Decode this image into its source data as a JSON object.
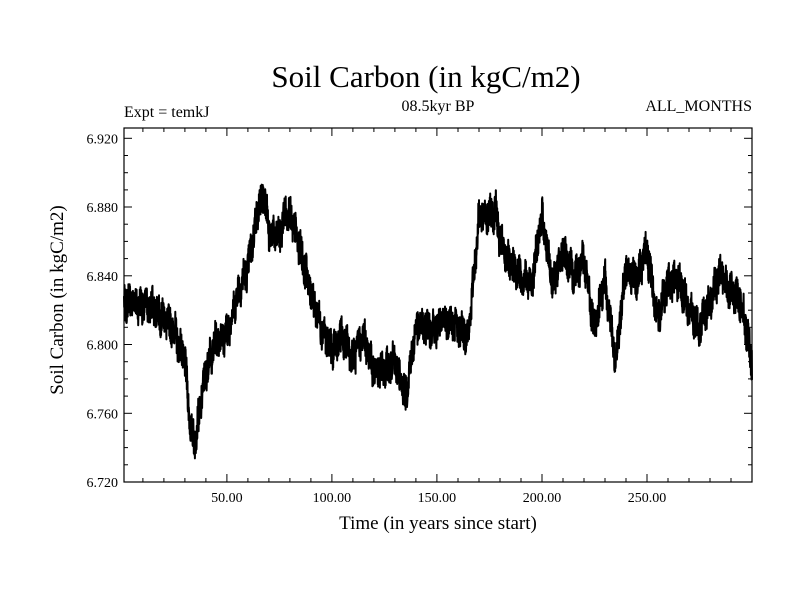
{
  "chart_data": {
    "type": "line",
    "title": "Soil Carbon (in kgC/m2)",
    "subtitle_left": "Expt = temkJ",
    "subtitle_center": "08.5kyr BP",
    "subtitle_right": "ALL_MONTHS",
    "xlabel": "Time (in years since start)",
    "ylabel": "Soil Carbon (in kgC/m2)",
    "xlim": [
      1,
      300
    ],
    "ylim": [
      6.72,
      6.926
    ],
    "xticks": [
      50,
      100,
      150,
      200,
      250
    ],
    "xtick_labels": [
      "50.00",
      "100.00",
      "150.00",
      "200.00",
      "250.00"
    ],
    "yticks": [
      6.72,
      6.76,
      6.8,
      6.84,
      6.88,
      6.92
    ],
    "ytick_labels": [
      "6.720",
      "6.760",
      "6.800",
      "6.840",
      "6.880",
      "6.920"
    ],
    "line_color": "#000000",
    "series": [
      {
        "name": "Soil Carbon",
        "x": [
          1,
          5,
          10,
          15,
          20,
          25,
          30,
          33,
          35,
          40,
          45,
          50,
          55,
          60,
          65,
          68,
          70,
          75,
          78,
          80,
          85,
          90,
          95,
          100,
          105,
          110,
          115,
          120,
          125,
          130,
          135,
          140,
          145,
          150,
          155,
          160,
          165,
          170,
          175,
          178,
          180,
          185,
          190,
          195,
          200,
          205,
          210,
          215,
          220,
          225,
          230,
          235,
          240,
          245,
          250,
          255,
          260,
          265,
          270,
          275,
          280,
          285,
          290,
          295,
          300
        ],
        "y": [
          6.824,
          6.826,
          6.822,
          6.822,
          6.815,
          6.808,
          6.79,
          6.748,
          6.745,
          6.785,
          6.803,
          6.806,
          6.83,
          6.845,
          6.88,
          6.888,
          6.865,
          6.862,
          6.878,
          6.875,
          6.855,
          6.83,
          6.81,
          6.797,
          6.805,
          6.792,
          6.805,
          6.785,
          6.785,
          6.79,
          6.77,
          6.81,
          6.81,
          6.81,
          6.815,
          6.81,
          6.805,
          6.875,
          6.875,
          6.878,
          6.86,
          6.845,
          6.84,
          6.835,
          6.875,
          6.835,
          6.855,
          6.84,
          6.85,
          6.808,
          6.838,
          6.79,
          6.845,
          6.838,
          6.855,
          6.815,
          6.835,
          6.838,
          6.82,
          6.81,
          6.825,
          6.843,
          6.83,
          6.825,
          6.79
        ]
      }
    ]
  }
}
